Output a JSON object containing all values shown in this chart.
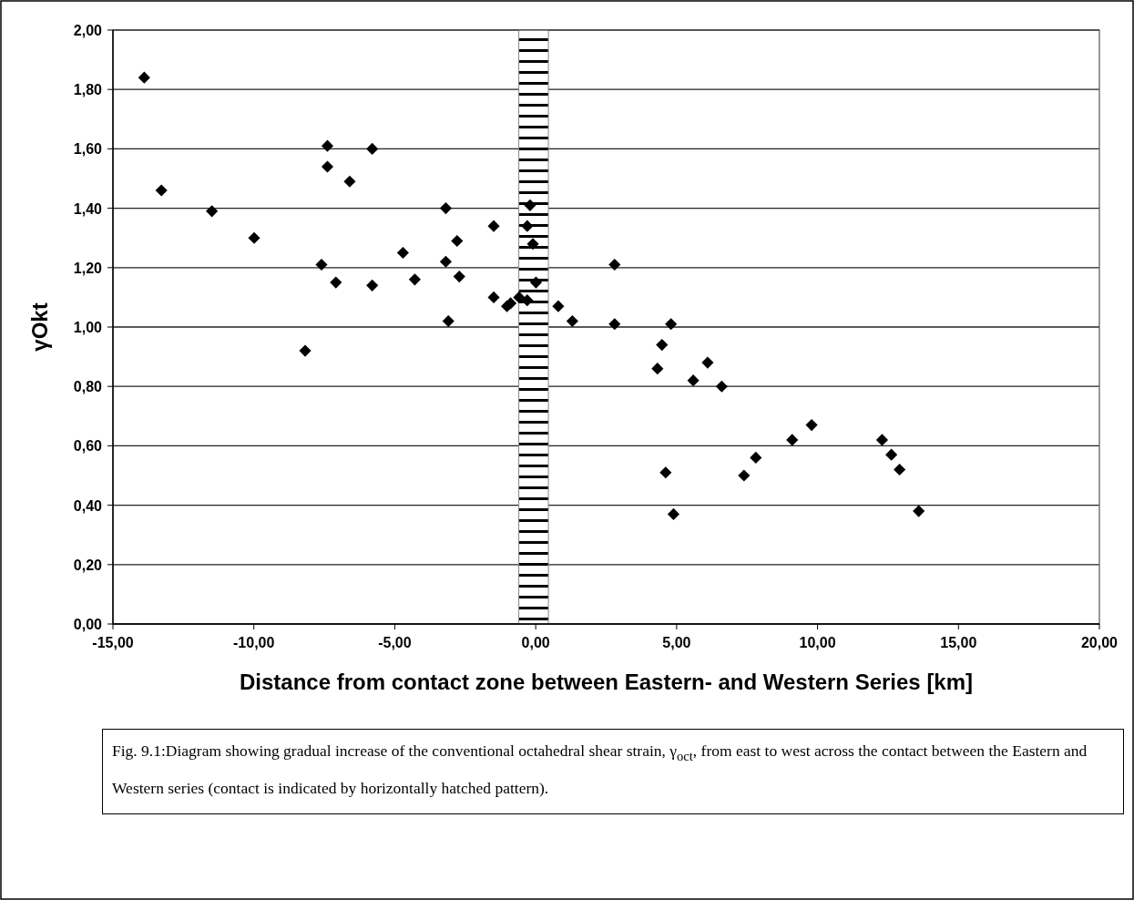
{
  "chart_data": {
    "type": "scatter",
    "xlabel": "Distance from contact zone between Eastern- and Western Series [km]",
    "ylabel": "γOkt",
    "annotations": [
      "Fig. 9.1:Diagram showing gradual increase of the conventional octahedral shear strain, γ$_{oct}$, from east to west across the contact between the Eastern and Western series (contact is indicated by horizontally hatched pattern)."
    ],
    "x": [
      -13.89,
      -13.28,
      -11.49,
      -9.99,
      -7.39,
      -5.8,
      -7.39,
      -6.6,
      -7.6,
      -7.09,
      -5.8,
      -4.71,
      -4.29,
      -8.18,
      -3.19,
      -0.2,
      -1.49,
      -0.3,
      -2.79,
      -0.1,
      -3.19,
      -2.71,
      2.8,
      -1.49,
      -0.59,
      -1.02,
      -0.89,
      -0.3,
      0.01,
      0.8,
      1.3,
      2.8,
      4.8,
      -3.1,
      4.48,
      4.32,
      6.1,
      5.59,
      6.6,
      4.61,
      4.89,
      7.39,
      7.81,
      9.1,
      9.79,
      12.29,
      12.62,
      12.91,
      13.59
    ],
    "values": [
      1.84,
      1.46,
      1.39,
      1.3,
      1.61,
      1.6,
      1.54,
      1.49,
      1.21,
      1.15,
      1.14,
      1.25,
      1.16,
      0.92,
      1.4,
      1.41,
      1.34,
      1.34,
      1.29,
      1.28,
      1.22,
      1.17,
      1.21,
      1.1,
      1.1,
      1.07,
      1.08,
      1.09,
      1.15,
      1.07,
      1.02,
      1.01,
      1.01,
      1.02,
      0.94,
      0.86,
      0.88,
      0.82,
      0.8,
      0.51,
      0.37,
      0.5,
      0.56,
      0.62,
      0.67,
      0.62,
      0.57,
      0.52,
      0.38
    ],
    "color": "#000000",
    "marker": "diamond",
    "grid": "y",
    "xlim": [
      -15,
      20
    ],
    "xticks": [
      {
        "value": -15,
        "label": "-15,00"
      },
      {
        "value": -10,
        "label": "-10,00"
      },
      {
        "value": -5,
        "label": "-5,00"
      },
      {
        "value": 0,
        "label": "0,00"
      },
      {
        "value": 5,
        "label": "5,00"
      },
      {
        "value": 10,
        "label": "10,00"
      },
      {
        "value": 15,
        "label": "15,00"
      },
      {
        "value": 20,
        "label": "20,00"
      }
    ],
    "ylim": [
      0,
      2
    ],
    "yticks": [
      {
        "value": 0,
        "label": "0,00"
      },
      {
        "value": 0.2,
        "label": "0,20"
      },
      {
        "value": 0.4,
        "label": "0,40"
      },
      {
        "value": 0.6,
        "label": "0,60"
      },
      {
        "value": 0.8,
        "label": "0,80"
      },
      {
        "value": 1,
        "label": "1,00"
      },
      {
        "value": 1.2,
        "label": "1,20"
      },
      {
        "value": 1.4,
        "label": "1,40"
      },
      {
        "value": 1.6,
        "label": "1,60"
      },
      {
        "value": 1.8,
        "label": "1,80"
      },
      {
        "value": 2,
        "label": "2,00"
      }
    ],
    "bands": [
      {
        "axis": "x",
        "from": -0.6,
        "to": 0.45
      }
    ]
  }
}
